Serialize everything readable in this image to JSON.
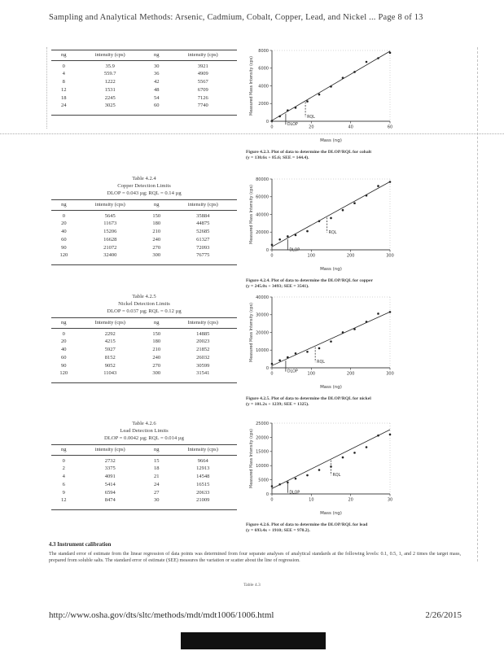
{
  "page": {
    "header_title": "Sampling and Analytical Methods: Arsenic, Cadmium, Cobalt, Copper, Lead, and Nickel ... Page 8 of 13",
    "footer_url": "http://www.osha.gov/dts/sltc/methods/mdt/mdt1006/1006.html",
    "footer_date": "2/26/2015",
    "trailing_fragment": "Table 4.3"
  },
  "section_43": {
    "heading": "4.3 Instrument calibration",
    "body": "The standard error of estimate from the linear regression of data points was determined from four separate analyses of analytical standards at the following levels: 0.1, 0.5, 1, and 2 times the target mass, prepared from soluble salts. The standard error of estimate (SEE) measures the variation or scatter about the line of regression."
  },
  "tables": [
    {
      "title_lines": [],
      "headers": [
        "ng",
        "intensity (cps)",
        "ng",
        "intensity (cps)"
      ],
      "rows": [
        [
          "0",
          "35.9",
          "30",
          "3921"
        ],
        [
          "4",
          "559.7",
          "36",
          "4909"
        ],
        [
          "8",
          "1222",
          "42",
          "5567"
        ],
        [
          "12",
          "1531",
          "48",
          "6709"
        ],
        [
          "18",
          "2245",
          "54",
          "7126"
        ],
        [
          "24",
          "3025",
          "60",
          "7740"
        ]
      ]
    },
    {
      "title_lines": [
        "Table 4.2.4",
        "Copper Detection Limits",
        "DLOP = 0.043 µg; RQL = 0.14 µg"
      ],
      "headers": [
        "ng",
        "intensity (cps)",
        "ng",
        "intensity (cps)"
      ],
      "rows": [
        [
          "0",
          "5645",
          "150",
          "35884"
        ],
        [
          "20",
          "11673",
          "180",
          "44875"
        ],
        [
          "40",
          "15206",
          "210",
          "52685"
        ],
        [
          "60",
          "16628",
          "240",
          "61327"
        ],
        [
          "90",
          "21072",
          "270",
          "72093"
        ],
        [
          "120",
          "32400",
          "300",
          "76775"
        ]
      ]
    },
    {
      "title_lines": [
        "Table 4.2.5",
        "Nickel Detection Limits",
        "DLOP = 0.037 µg; RQL = 0.12 µg"
      ],
      "headers": [
        "ng",
        "Intensity (cps)",
        "ng",
        "Intensity (cps)"
      ],
      "rows": [
        [
          "0",
          "2292",
          "150",
          "14885"
        ],
        [
          "20",
          "4215",
          "180",
          "20023"
        ],
        [
          "40",
          "5927",
          "210",
          "21852"
        ],
        [
          "60",
          "8152",
          "240",
          "26032"
        ],
        [
          "90",
          "9052",
          "270",
          "30599"
        ],
        [
          "120",
          "11043",
          "300",
          "31541"
        ]
      ]
    },
    {
      "title_lines": [
        "Table 4.2.6",
        "Lead Detection Limits",
        "DLOP = 0.0042 µg; RQL = 0.014 µg"
      ],
      "headers": [
        "ng",
        "intensity (cps)",
        "ng",
        "Intensity (cps)"
      ],
      "rows": [
        [
          "0",
          "2732",
          "15",
          "9664"
        ],
        [
          "2",
          "3375",
          "18",
          "12913"
        ],
        [
          "4",
          "4091",
          "21",
          "14548"
        ],
        [
          "6",
          "5414",
          "24",
          "16515"
        ],
        [
          "9",
          "6594",
          "27",
          "20633"
        ],
        [
          "12",
          "8474",
          "30",
          "21009"
        ]
      ]
    }
  ],
  "chart_data": [
    {
      "type": "scatter",
      "name": "cobalt",
      "caption_line1": "Figure 4.2.3. Plot of data to determine the DLOP/RQL for cobalt",
      "caption_line2": "(y = 130.6x + 85.6; SEE = 144.4).",
      "xlabel": "Mass (ng)",
      "ylabel": "Measured Mass Intensity (cps)",
      "x": [
        0,
        4,
        8,
        12,
        18,
        24,
        30,
        36,
        42,
        48,
        54,
        60
      ],
      "y": [
        35.9,
        559.7,
        1222,
        1531,
        2245,
        3025,
        3921,
        4909,
        5567,
        6709,
        7126,
        7740
      ],
      "xlim": [
        0,
        60
      ],
      "xticks": [
        0,
        20,
        40,
        60
      ],
      "ylim": [
        0,
        8000
      ],
      "yticks": [
        0,
        2000,
        4000,
        6000,
        8000
      ],
      "fit": {
        "slope": 130.6,
        "intercept": 85.6
      },
      "annotations": [
        {
          "label": "DLOP",
          "x": 7
        },
        {
          "label": "RQL",
          "x": 17
        }
      ]
    },
    {
      "type": "scatter",
      "name": "copper",
      "caption_line1": "Figure 4.2.4. Plot of data to determine the DLOP/RQL for copper",
      "caption_line2": "(y = 245.0x + 3493; SEE = 3541).",
      "xlabel": "Mass (ng)",
      "ylabel": "Measured Mass Intensity (cps)",
      "x": [
        0,
        20,
        40,
        60,
        90,
        120,
        150,
        180,
        210,
        240,
        270,
        300
      ],
      "y": [
        5645,
        11673,
        15206,
        16628,
        21072,
        32400,
        35884,
        44875,
        52685,
        61327,
        72093,
        76775
      ],
      "xlim": [
        0,
        300
      ],
      "xticks": [
        0,
        100,
        200,
        300
      ],
      "ylim": [
        0,
        80000
      ],
      "yticks": [
        0,
        20000,
        40000,
        60000,
        80000
      ],
      "fit": {
        "slope": 245.0,
        "intercept": 3493
      },
      "annotations": [
        {
          "label": "DLOP",
          "x": 40
        },
        {
          "label": "RQL",
          "x": 140
        }
      ]
    },
    {
      "type": "scatter",
      "name": "nickel",
      "caption_line1": "Figure 4.2.5. Plot of data to determine the DLOP/RQL for nickel",
      "caption_line2": "(y = 101.2x + 1239; SEE = 1325).",
      "xlabel": "Mass (ng)",
      "ylabel": "Measured Mass Intensity (cps)",
      "x": [
        0,
        20,
        40,
        60,
        90,
        120,
        150,
        180,
        210,
        240,
        270,
        300
      ],
      "y": [
        2292,
        4215,
        5927,
        8152,
        9052,
        11043,
        14885,
        20023,
        21852,
        26032,
        30599,
        31541
      ],
      "xlim": [
        0,
        300
      ],
      "xticks": [
        0,
        100,
        200,
        300
      ],
      "ylim": [
        0,
        40000
      ],
      "yticks": [
        0,
        10000,
        20000,
        30000,
        40000
      ],
      "fit": {
        "slope": 101.2,
        "intercept": 1239
      },
      "annotations": [
        {
          "label": "DLOP",
          "x": 35
        },
        {
          "label": "RQL",
          "x": 110
        }
      ]
    },
    {
      "type": "scatter",
      "name": "lead",
      "caption_line1": "Figure 4.2.6. Plot of data to determine the DLOP/RQL for lead",
      "caption_line2": "(y = 693.4x + 1910; SEE = 970.2).",
      "xlabel": "Mass (ng)",
      "ylabel": "Measured Mass Intensity (cps)",
      "x": [
        0,
        2,
        4,
        6,
        9,
        12,
        15,
        18,
        21,
        24,
        27,
        30
      ],
      "y": [
        2732,
        3375,
        4091,
        5414,
        6594,
        8474,
        9664,
        12913,
        14548,
        16515,
        20633,
        21009
      ],
      "xlim": [
        0,
        30
      ],
      "xticks": [
        0,
        10,
        20,
        30
      ],
      "ylim": [
        0,
        25000
      ],
      "yticks": [
        0,
        5000,
        10000,
        15000,
        20000,
        25000
      ],
      "fit": {
        "slope": 693.4,
        "intercept": 1910
      },
      "annotations": [
        {
          "label": "DLOP",
          "x": 4
        },
        {
          "label": "RQL",
          "x": 15
        }
      ]
    }
  ]
}
